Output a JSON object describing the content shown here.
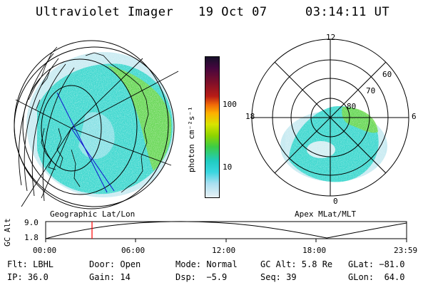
{
  "header": {
    "instrument": "Ultraviolet Imager",
    "date": "19 Oct 07",
    "time": "03:14:11 UT"
  },
  "left_panel": {
    "caption": "Geographic Lat/Lon"
  },
  "colorbar": {
    "unit_label": "photon cm⁻²s⁻¹",
    "ticks": [
      "100",
      "10"
    ]
  },
  "right_panel": {
    "caption": "Apex MLat/MLT",
    "mlt_labels": [
      "12",
      "18",
      "6",
      "0"
    ],
    "mlat_labels": [
      "60",
      "70",
      "80"
    ]
  },
  "altitude_plot": {
    "ylabel": "GC Alt",
    "y_ticks": [
      "9.0",
      "1.8"
    ],
    "x_ticks": [
      "00:00",
      "06:00",
      "12:00",
      "18:00",
      "23:59"
    ],
    "marker_color": "#ff0000"
  },
  "info": {
    "row1": [
      "Flt: LBHL",
      "Door: Open",
      "Mode: Normal",
      "GC Alt: 5.8 Re",
      "GLat: −81.0"
    ],
    "row2": [
      "IP: 36.0",
      "Gain: 14",
      "Dsp:  −5.9",
      "Seq: 39",
      "GLon:  64.0"
    ]
  },
  "colors": {
    "aurora_main": "#3fd8cf",
    "aurora_bright": "#6fd84a",
    "aurora_faint": "#c9ebf2",
    "meridian_line": "#1010d0"
  }
}
